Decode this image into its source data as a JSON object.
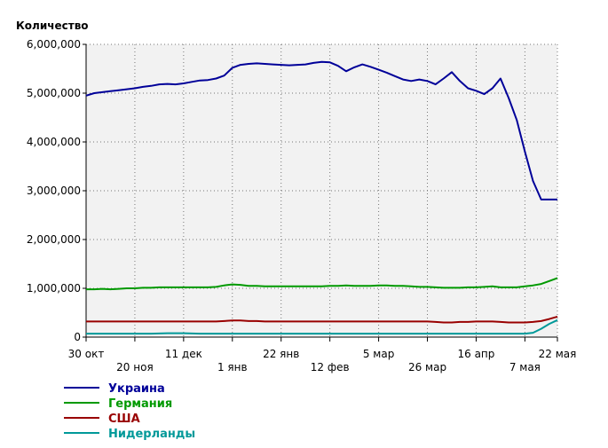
{
  "chart_data": {
    "type": "line",
    "ylabel": "Количество",
    "ylim": [
      0,
      6000000
    ],
    "y_ticks": [
      "0",
      "1,000,000",
      "2,000,000",
      "3,000,000",
      "4,000,000",
      "5,000,000",
      "6,000,000"
    ],
    "x_ticks_top": [
      "30 окт",
      "11 дек",
      "22 янв",
      "5 мар",
      "16 апр",
      "22 мая"
    ],
    "x_ticks_bottom": [
      "20 ноя",
      "1 янв",
      "12 фев",
      "26 мар",
      "7 мая"
    ],
    "x_range": [
      "30 окт",
      "22 мая"
    ],
    "grid": true,
    "legend_position": "bottom-left",
    "x": [
      "30 окт",
      "2 ноя",
      "6 ноя",
      "9 ноя",
      "13 ноя",
      "16 ноя",
      "20 ноя",
      "23 ноя",
      "27 ноя",
      "30 ноя",
      "4 дек",
      "7 дек",
      "11 дек",
      "14 дек",
      "18 дек",
      "21 дек",
      "25 дек",
      "28 дек",
      "1 янв",
      "4 янв",
      "8 янв",
      "11 янв",
      "15 янв",
      "18 янв",
      "22 янв",
      "25 янв",
      "29 янв",
      "1 фев",
      "5 фев",
      "8 фев",
      "12 фев",
      "15 фев",
      "19 фев",
      "22 фев",
      "26 фев",
      "1 мар",
      "5 мар",
      "8 мар",
      "12 мар",
      "15 мар",
      "19 мар",
      "22 мар",
      "26 мар",
      "29 мар",
      "2 апр",
      "5 апр",
      "9 апр",
      "12 апр",
      "16 апр",
      "19 апр",
      "23 апр",
      "26 апр",
      "30 апр",
      "3 мая",
      "7 мая",
      "10 мая",
      "14 мая",
      "17 мая",
      "22 мая"
    ],
    "series": [
      {
        "name": "Украина",
        "color": "#000099",
        "values": [
          4950000,
          5000000,
          5020000,
          5040000,
          5060000,
          5080000,
          5100000,
          5130000,
          5150000,
          5180000,
          5190000,
          5180000,
          5200000,
          5230000,
          5260000,
          5270000,
          5300000,
          5360000,
          5520000,
          5580000,
          5600000,
          5610000,
          5600000,
          5590000,
          5580000,
          5570000,
          5580000,
          5590000,
          5620000,
          5640000,
          5630000,
          5560000,
          5450000,
          5530000,
          5590000,
          5540000,
          5480000,
          5420000,
          5350000,
          5280000,
          5250000,
          5280000,
          5250000,
          5180000,
          5300000,
          5430000,
          5250000,
          5100000,
          5050000,
          4980000,
          5100000,
          5300000,
          4900000,
          4450000,
          3800000,
          3200000,
          2820000,
          2820000,
          2820000
        ]
      },
      {
        "name": "Германия",
        "color": "#009900",
        "values": [
          980000,
          980000,
          990000,
          980000,
          990000,
          1000000,
          1000000,
          1010000,
          1010000,
          1020000,
          1020000,
          1020000,
          1020000,
          1020000,
          1020000,
          1020000,
          1030000,
          1060000,
          1080000,
          1070000,
          1050000,
          1050000,
          1040000,
          1040000,
          1040000,
          1040000,
          1040000,
          1040000,
          1040000,
          1040000,
          1050000,
          1050000,
          1060000,
          1050000,
          1050000,
          1050000,
          1060000,
          1060000,
          1050000,
          1050000,
          1040000,
          1030000,
          1030000,
          1020000,
          1010000,
          1010000,
          1010000,
          1020000,
          1020000,
          1030000,
          1040000,
          1020000,
          1020000,
          1020000,
          1040000,
          1060000,
          1090000,
          1150000,
          1210000
        ]
      },
      {
        "name": "США",
        "color": "#990000",
        "values": [
          320000,
          320000,
          320000,
          320000,
          320000,
          320000,
          320000,
          320000,
          320000,
          320000,
          320000,
          320000,
          320000,
          320000,
          320000,
          320000,
          320000,
          330000,
          340000,
          340000,
          330000,
          330000,
          320000,
          320000,
          320000,
          320000,
          320000,
          320000,
          320000,
          320000,
          320000,
          320000,
          320000,
          320000,
          320000,
          320000,
          320000,
          320000,
          320000,
          320000,
          320000,
          320000,
          320000,
          310000,
          300000,
          300000,
          310000,
          310000,
          320000,
          320000,
          320000,
          310000,
          300000,
          300000,
          300000,
          310000,
          330000,
          370000,
          420000
        ]
      },
      {
        "name": "Нидерланды",
        "color": "#009999",
        "values": [
          70000,
          70000,
          70000,
          70000,
          70000,
          70000,
          70000,
          70000,
          70000,
          75000,
          80000,
          80000,
          80000,
          75000,
          70000,
          70000,
          70000,
          70000,
          70000,
          70000,
          70000,
          70000,
          70000,
          70000,
          70000,
          70000,
          70000,
          70000,
          70000,
          70000,
          70000,
          70000,
          70000,
          70000,
          70000,
          70000,
          70000,
          70000,
          70000,
          70000,
          70000,
          70000,
          70000,
          70000,
          70000,
          70000,
          70000,
          70000,
          70000,
          70000,
          70000,
          70000,
          70000,
          70000,
          70000,
          90000,
          170000,
          270000,
          350000
        ]
      }
    ]
  }
}
